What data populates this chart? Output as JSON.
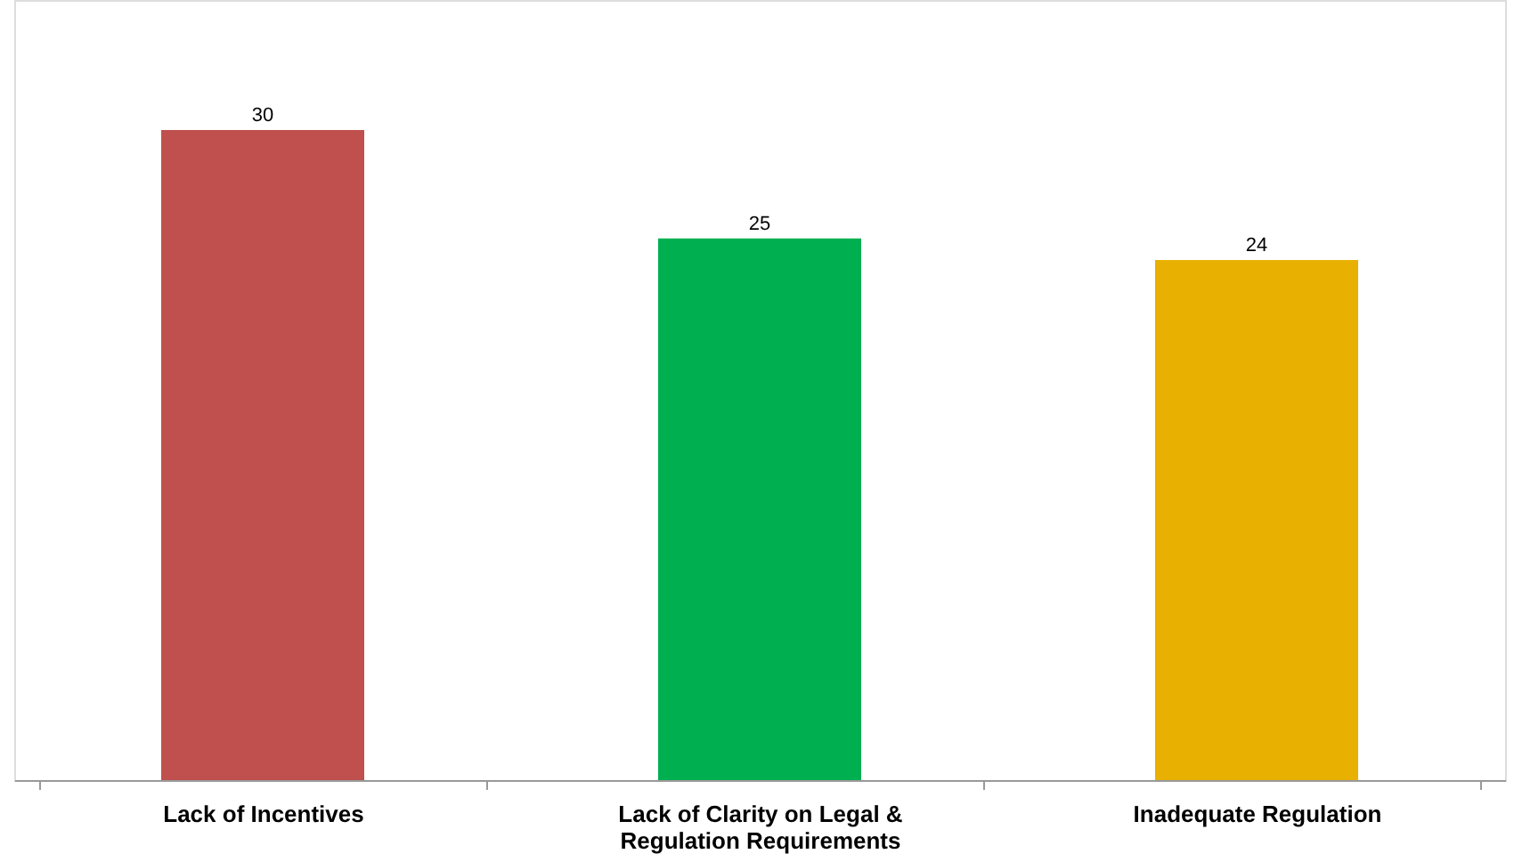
{
  "chart_data": {
    "type": "bar",
    "categories": [
      "Lack of Incentives",
      "Lack of Clarity on Legal & Regulation Requirements",
      "Inadequate Regulation"
    ],
    "values": [
      30,
      25,
      24
    ],
    "colors": [
      "#c0504d",
      "#00b050",
      "#e8b000"
    ],
    "data_labels": true
  }
}
